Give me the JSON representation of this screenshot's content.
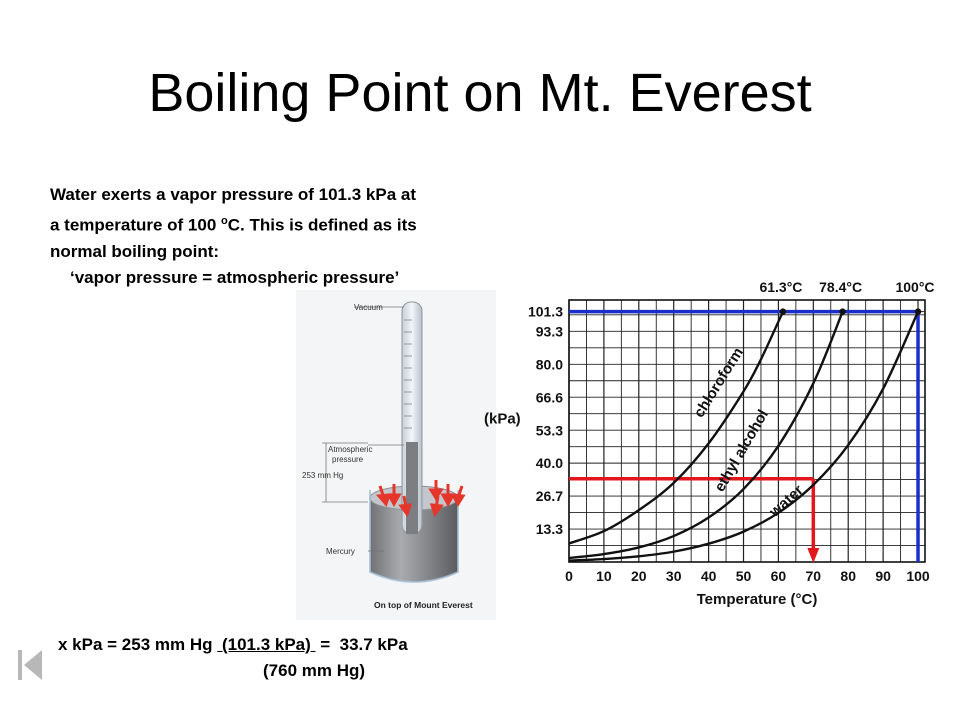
{
  "slide": {
    "title": "Boiling Point on Mt. Everest",
    "intro_line1": "Water exerts a vapor pressure of 101.3 kPa at",
    "intro_line2_a": "a temperature of 100 ",
    "intro_line2_sup": "o",
    "intro_line2_b": "C.  This is defined as its",
    "intro_line3": "normal boiling point:",
    "intro_quote": "‘vapor pressure  =  atmospheric pressure’",
    "formula_a": "x kPa = 253 mm Hg ",
    "formula_u": " (101.3 kPa) ",
    "formula_b": " =  33.7 kPa",
    "formula_line2": "(760 mm Hg)"
  },
  "barometer": {
    "vacuum_label": "Vacuum",
    "atm_label_1": "Atmospheric",
    "atm_label_2": "pressure",
    "height_label": "253 mm Hg",
    "mercury_label": "Mercury",
    "caption": "On top of Mount Everest"
  },
  "nav": {
    "prev_icon": "skip-back-icon"
  },
  "chart_data": {
    "type": "line",
    "xlabel": "Temperature (°C)",
    "ylabel": "(kPa)",
    "x_ticks": [
      0,
      10,
      20,
      30,
      40,
      50,
      60,
      70,
      80,
      90,
      100
    ],
    "y_ticks": [
      "13.3",
      "26.7",
      "40.0",
      "53.3",
      "66.6",
      "80.0",
      "93.3",
      "101.3"
    ],
    "y_tick_values": [
      13.3,
      26.7,
      40.0,
      53.3,
      66.6,
      80.0,
      93.3,
      101.3
    ],
    "xlim": [
      0,
      102
    ],
    "ylim": [
      0,
      106
    ],
    "grid": true,
    "top_labels": [
      {
        "text": "61.3°C",
        "x": 61.3
      },
      {
        "text": "78.4°C",
        "x": 78.4
      },
      {
        "text": "100°C",
        "x": 100
      }
    ],
    "series": [
      {
        "name": "chloroform",
        "x": [
          0,
          10,
          20,
          30,
          40,
          50,
          55,
          61.3
        ],
        "y": [
          7.5,
          12.5,
          21,
          32,
          48,
          69,
          82,
          101.3
        ]
      },
      {
        "name": "ethyl alcohol",
        "x": [
          0,
          10,
          20,
          30,
          40,
          50,
          60,
          70,
          78.4
        ],
        "y": [
          1.6,
          3.2,
          5.9,
          10.5,
          18,
          29.5,
          47,
          72.3,
          101.3
        ]
      },
      {
        "name": "water",
        "x": [
          0,
          10,
          20,
          30,
          40,
          50,
          60,
          70,
          80,
          90,
          100
        ],
        "y": [
          0.6,
          1.2,
          2.3,
          4.2,
          7.4,
          12.3,
          19.9,
          31.2,
          47.3,
          70.1,
          101.3
        ]
      }
    ],
    "reference_lines": [
      {
        "name": "blue-standard",
        "color": "#1a2fc9",
        "pressure": 101.3,
        "temperature": 100
      },
      {
        "name": "red-everest",
        "color": "#e3171b",
        "pressure": 33.7,
        "temperature": 70
      }
    ],
    "curve_color": "#111111"
  }
}
